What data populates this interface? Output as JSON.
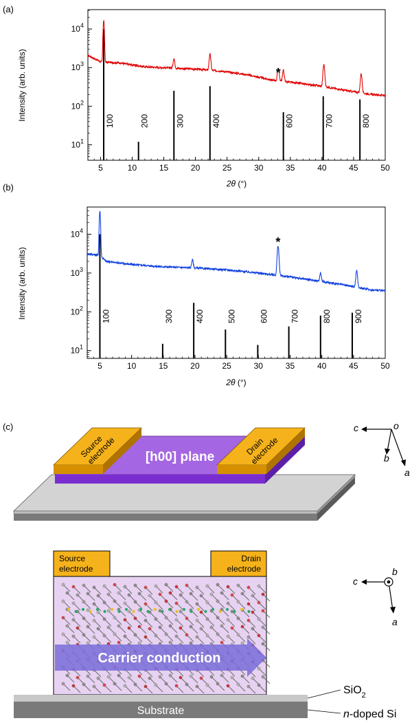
{
  "panels": {
    "a_label": "(a)",
    "b_label": "(b)",
    "c_label": "(c)"
  },
  "chart_data": [
    {
      "type": "line",
      "panel": "(a)",
      "color": "#e00000",
      "xlabel": "2θ (°)",
      "ylabel": "Intensity (arb. units)",
      "xlim": [
        3,
        50
      ],
      "ylim_log10": [
        0.6,
        4.5
      ],
      "y_scale": "log",
      "x_ticks": [
        5,
        10,
        15,
        20,
        25,
        30,
        35,
        40,
        45,
        50
      ],
      "y_ticks": [
        "10^1",
        "10^2",
        "10^3",
        "10^4"
      ],
      "baseline_log": [
        [
          3,
          3.32
        ],
        [
          5,
          3.15
        ],
        [
          8,
          3.12
        ],
        [
          12,
          3.02
        ],
        [
          16,
          2.99
        ],
        [
          20,
          2.96
        ],
        [
          24,
          2.91
        ],
        [
          28,
          2.82
        ],
        [
          32,
          2.68
        ],
        [
          36,
          2.6
        ],
        [
          40,
          2.52
        ],
        [
          44,
          2.4
        ],
        [
          48,
          2.3
        ],
        [
          50,
          2.28
        ]
      ],
      "peaks": [
        {
          "x": 5.5,
          "y": 17000
        },
        {
          "x": 16.6,
          "y": 1700
        },
        {
          "x": 22.3,
          "y": 2200
        },
        {
          "x": 33.1,
          "y": 1000
        },
        {
          "x": 33.9,
          "y": 850
        },
        {
          "x": 40.3,
          "y": 1200
        },
        {
          "x": 46.2,
          "y": 700
        }
      ],
      "reference_lines": [
        {
          "x": 5.5,
          "y": 10000,
          "label": "100"
        },
        {
          "x": 11.0,
          "y": 12,
          "label": "200"
        },
        {
          "x": 16.6,
          "y": 250,
          "label": "300"
        },
        {
          "x": 22.3,
          "y": 330,
          "label": "400"
        },
        {
          "x": 33.9,
          "y": 70,
          "label": "600"
        },
        {
          "x": 40.2,
          "y": 180,
          "label": "700"
        },
        {
          "x": 46.0,
          "y": 150,
          "label": "800"
        }
      ],
      "annotations": [
        {
          "text": "*",
          "x": 33.1
        }
      ]
    },
    {
      "type": "line",
      "panel": "(b)",
      "color": "#1040e0",
      "xlabel": "2θ (°)",
      "ylabel": "Intensity (arb. units)",
      "xlim": [
        3,
        50
      ],
      "ylim_log10": [
        0.8,
        4.7
      ],
      "y_scale": "log",
      "x_ticks": [
        5,
        10,
        15,
        20,
        25,
        30,
        35,
        40,
        45,
        50
      ],
      "y_ticks": [
        "10^1",
        "10^2",
        "10^3",
        "10^4"
      ],
      "baseline_log": [
        [
          3,
          3.5
        ],
        [
          5,
          3.45
        ],
        [
          6,
          3.3
        ],
        [
          10,
          3.22
        ],
        [
          15,
          3.16
        ],
        [
          20,
          3.13
        ],
        [
          25,
          3.08
        ],
        [
          30,
          3.0
        ],
        [
          35,
          2.9
        ],
        [
          40,
          2.78
        ],
        [
          45,
          2.65
        ],
        [
          48,
          2.56
        ],
        [
          50,
          2.55
        ]
      ],
      "peaks": [
        {
          "x": 5.0,
          "y": 40000
        },
        {
          "x": 19.6,
          "y": 2200
        },
        {
          "x": 33.1,
          "y": 5000
        },
        {
          "x": 39.8,
          "y": 1000
        },
        {
          "x": 45.5,
          "y": 1150
        }
      ],
      "reference_lines": [
        {
          "x": 5.0,
          "y": 10000,
          "label": "100"
        },
        {
          "x": 14.9,
          "y": 15,
          "label": "300"
        },
        {
          "x": 19.8,
          "y": 170,
          "label": "400"
        },
        {
          "x": 24.8,
          "y": 35,
          "label": "500"
        },
        {
          "x": 29.9,
          "y": 14,
          "label": "600"
        },
        {
          "x": 34.8,
          "y": 42,
          "label": "700"
        },
        {
          "x": 39.8,
          "y": 80,
          "label": "800"
        },
        {
          "x": 44.8,
          "y": 95,
          "label": "900"
        }
      ],
      "annotations": [
        {
          "text": "*",
          "x": 33.1
        }
      ]
    }
  ],
  "device_top": {
    "source_label": "Source\nelectrode",
    "drain_label": "Drain\nelectrode",
    "plane_label": "[h00] plane",
    "axes": {
      "c": "c",
      "o": "o",
      "b": "b",
      "a": "a"
    }
  },
  "device_side": {
    "source_label": "Source\nelectrode",
    "drain_label": "Drain\nelectrode",
    "carrier_label": "Carrier conduction",
    "substrate_label": "Substrate",
    "sio2_label": "SiO2",
    "ndoped_label": "n-doped Si",
    "axes": {
      "c": "c",
      "b": "b",
      "a": "a"
    }
  },
  "colors": {
    "red_trace": "#e00000",
    "blue_trace": "#1040e0",
    "electrode": "#f5b21b",
    "plane": "#9b5bd8",
    "arrow": "#7a6ad8",
    "substrate": "#a7a7a7"
  }
}
